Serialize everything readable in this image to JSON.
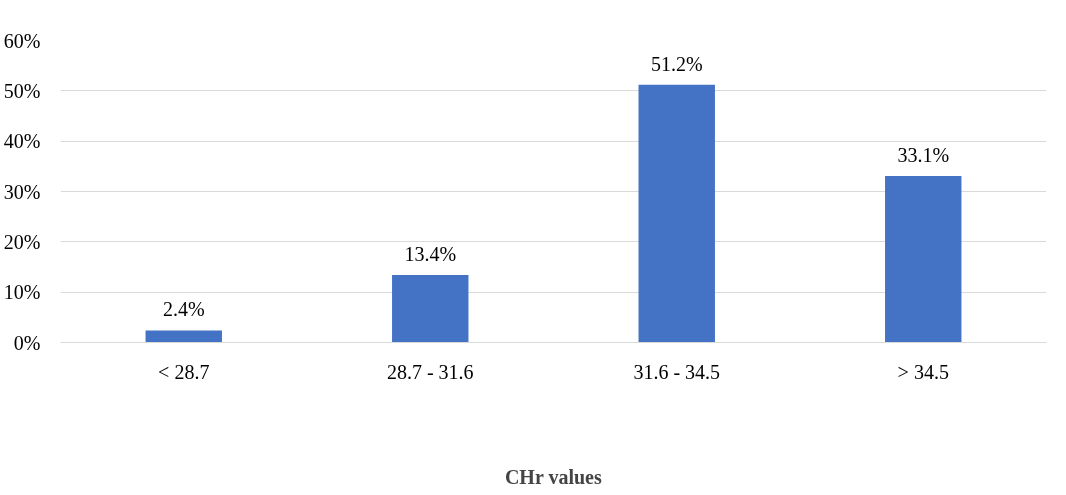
{
  "chart_data": {
    "type": "bar",
    "xlabel": "CHr values",
    "categories": [
      "< 28.7",
      "28.7 - 31.6",
      "31.6 - 34.5",
      "> 34.5"
    ],
    "values": [
      2.4,
      13.4,
      51.2,
      33.1
    ],
    "value_labels": [
      "2.4%",
      "13.4%",
      "51.2%",
      "33.1%"
    ],
    "color": "#4472c4",
    "ylim": [
      0,
      60
    ],
    "yticks": [
      {
        "value": 0,
        "label": "0%"
      },
      {
        "value": 10,
        "label": "10%"
      },
      {
        "value": 20,
        "label": "20%"
      },
      {
        "value": 30,
        "label": "30%"
      },
      {
        "value": 40,
        "label": "40%"
      },
      {
        "value": 50,
        "label": "50%"
      },
      {
        "value": 60,
        "label": "60%"
      }
    ],
    "grid": "y"
  }
}
